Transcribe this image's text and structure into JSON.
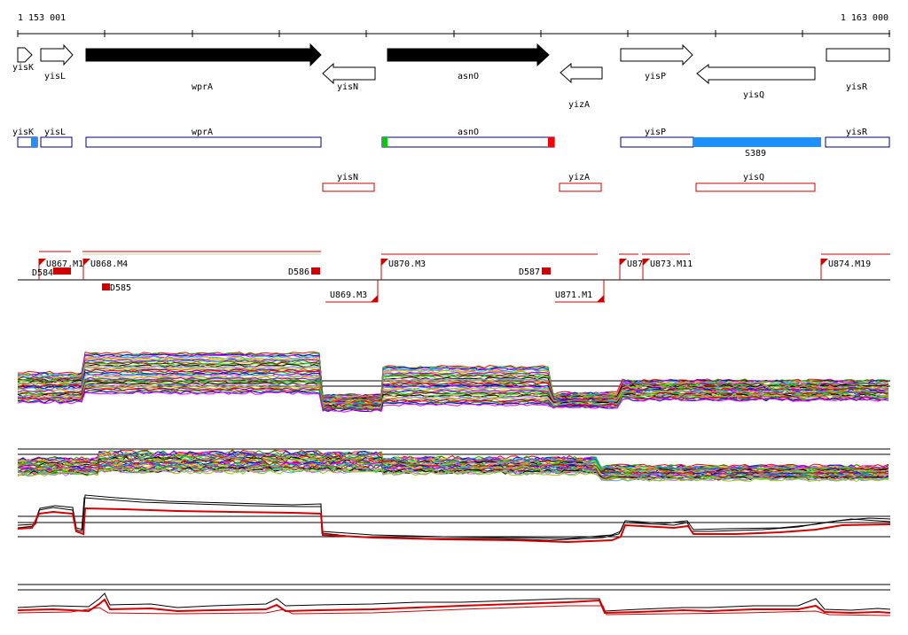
{
  "coords": {
    "start": "1 153 001",
    "end": "1 163 000"
  },
  "genes": [
    {
      "name": "yisK",
      "dir": "right",
      "fill": "white"
    },
    {
      "name": "yisL",
      "dir": "right",
      "fill": "white"
    },
    {
      "name": "wprA",
      "dir": "right",
      "fill": "black"
    },
    {
      "name": "yisN",
      "dir": "left",
      "fill": "white"
    },
    {
      "name": "asnO",
      "dir": "right",
      "fill": "black"
    },
    {
      "name": "yizA",
      "dir": "left",
      "fill": "white"
    },
    {
      "name": "yisP",
      "dir": "right",
      "fill": "white"
    },
    {
      "name": "yisQ",
      "dir": "left",
      "fill": "white"
    },
    {
      "name": "yisR",
      "dir": "none",
      "fill": "white"
    }
  ],
  "forward_boxes": [
    {
      "label": "yisK"
    },
    {
      "label": "yisL"
    },
    {
      "label": "wprA"
    },
    {
      "label": "asnO"
    },
    {
      "label": "yisP"
    },
    {
      "label": "yisR"
    }
  ],
  "reverse_boxes": [
    {
      "label": "yisN"
    },
    {
      "label": "yizA"
    },
    {
      "label": "yisQ"
    }
  ],
  "feature_label": "S389",
  "upshifts": [
    "U867.M1",
    "U868.M4",
    "U870.M3",
    "U87",
    "U873.M11",
    "U874.M19",
    "U869.M3",
    "U871.M1"
  ],
  "downshifts": [
    "D585",
    "D586",
    "D587",
    "D584"
  ],
  "colors": {
    "gene_outline": "#000080",
    "reverse": "#d00000",
    "feature": "#1e90ff",
    "start": "#00cc00",
    "stop": "#ff0000",
    "series_red": "#d40000",
    "series_black": "#000000"
  }
}
